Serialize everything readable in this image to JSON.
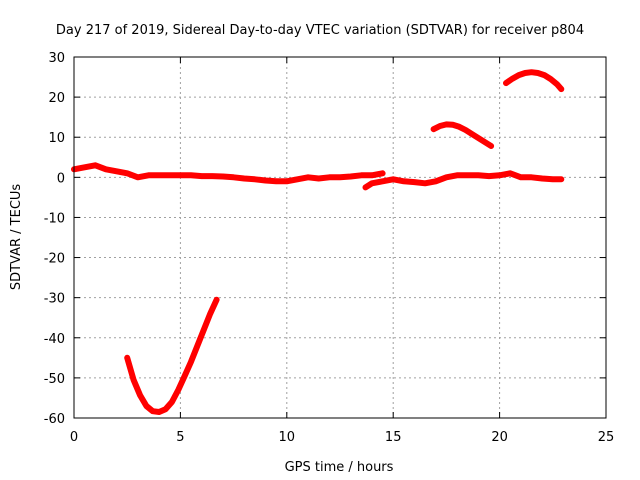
{
  "chart_data": {
    "type": "line",
    "title": "Day 217 of 2019, Sidereal Day-to-day VTEC variation (SDTVAR) for receiver p804",
    "xlabel": "GPS time / hours",
    "ylabel": "SDTVAR / TECUs",
    "xlim": [
      0,
      25
    ],
    "ylim": [
      -60,
      30
    ],
    "xticks": [
      0,
      5,
      10,
      15,
      20,
      25
    ],
    "xtick_labels": [
      "0",
      "5",
      "10",
      "15",
      "20",
      "25"
    ],
    "yticks": [
      -60,
      -50,
      -40,
      -30,
      -20,
      -10,
      0,
      10,
      20,
      30
    ],
    "ytick_labels": [
      "-60",
      "-50",
      "-40",
      "-30",
      "-20",
      "-10",
      "0",
      "10",
      "20",
      "30"
    ],
    "grid": true,
    "line_color": "#ff0000",
    "series": [
      {
        "name": "main-trace",
        "x": [
          0,
          0.5,
          1.0,
          1.5,
          2.0,
          2.5,
          3.0,
          3.5,
          4.0,
          4.5,
          5.0,
          5.5,
          6.0,
          6.5,
          7.0,
          7.5,
          8.0,
          8.5,
          9.0,
          9.5,
          10.0,
          10.5,
          11.0,
          11.5,
          12.0,
          12.5,
          13.0,
          13.5,
          14.0,
          14.5
        ],
        "y": [
          2.0,
          2.5,
          3.0,
          2.0,
          1.5,
          1.0,
          0.0,
          0.5,
          0.5,
          0.5,
          0.5,
          0.5,
          0.3,
          0.3,
          0.2,
          0.0,
          -0.3,
          -0.5,
          -0.8,
          -1.0,
          -1.0,
          -0.5,
          0.0,
          -0.3,
          0.0,
          0.0,
          0.2,
          0.5,
          0.5,
          1.0
        ]
      },
      {
        "name": "trace-b",
        "x": [
          13.7,
          14.0,
          14.5,
          15.0,
          15.5,
          16.0,
          16.5,
          17.0,
          17.5,
          18.0,
          18.5,
          19.0,
          19.5,
          20.0,
          20.5,
          21.0,
          21.5,
          22.0,
          22.5,
          22.9
        ],
        "y": [
          -2.5,
          -1.5,
          -1.0,
          -0.5,
          -1.0,
          -1.2,
          -1.5,
          -1.0,
          0.0,
          0.5,
          0.5,
          0.5,
          0.3,
          0.5,
          1.0,
          0.0,
          0.0,
          -0.3,
          -0.5,
          -0.5
        ]
      },
      {
        "name": "arc-17h",
        "x": [
          16.9,
          17.2,
          17.5,
          17.8,
          18.1,
          18.4,
          18.7,
          19.0,
          19.3,
          19.6
        ],
        "y": [
          12.0,
          12.8,
          13.2,
          13.1,
          12.6,
          11.8,
          10.8,
          9.8,
          8.8,
          7.8
        ]
      },
      {
        "name": "arc-21h",
        "x": [
          20.3,
          20.6,
          20.9,
          21.2,
          21.5,
          21.8,
          22.1,
          22.4,
          22.7,
          22.9
        ],
        "y": [
          23.5,
          24.6,
          25.5,
          26.0,
          26.2,
          26.0,
          25.5,
          24.5,
          23.2,
          22.0
        ]
      },
      {
        "name": "dip-4h",
        "x": [
          2.5,
          2.8,
          3.1,
          3.4,
          3.7,
          4.0,
          4.3,
          4.6,
          4.9,
          5.2,
          5.5,
          5.8,
          6.1,
          6.4,
          6.7
        ],
        "y": [
          -45.0,
          -50.5,
          -54.3,
          -57.0,
          -58.3,
          -58.5,
          -57.8,
          -56.0,
          -53.0,
          -49.5,
          -46.0,
          -42.0,
          -38.0,
          -34.0,
          -30.5
        ]
      }
    ]
  }
}
